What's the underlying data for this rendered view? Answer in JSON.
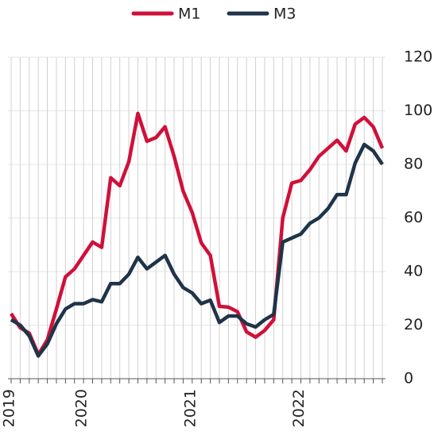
{
  "chart_data": {
    "type": "line",
    "categories": [
      "2019",
      null,
      null,
      null,
      null,
      null,
      null,
      null,
      "2020",
      null,
      null,
      null,
      null,
      null,
      null,
      null,
      null,
      null,
      null,
      null,
      "2021",
      null,
      null,
      null,
      null,
      null,
      null,
      null,
      null,
      null,
      null,
      null,
      "2022",
      null,
      null,
      null,
      null,
      null,
      null,
      null,
      null,
      null
    ],
    "series": [
      {
        "name": "M1",
        "color": "#d0103a",
        "values": [
          24.3,
          19,
          17,
          9,
          14.5,
          26,
          38,
          41,
          46,
          51,
          49,
          75,
          72,
          81,
          99,
          88.6,
          90,
          94,
          83,
          70,
          62,
          50.7,
          46,
          27,
          26.7,
          25,
          17.5,
          15.5,
          18,
          22,
          60,
          73,
          74,
          78,
          83,
          86,
          89,
          85,
          95,
          97.5,
          94,
          86
        ]
      },
      {
        "name": "M3",
        "color": "#1f3448",
        "values": [
          22,
          20,
          16,
          8.5,
          13,
          20.5,
          26,
          28,
          28,
          29.5,
          28.7,
          35.5,
          35.5,
          39,
          45.3,
          41,
          43.5,
          46,
          39,
          34,
          32,
          28,
          29.3,
          21,
          23.4,
          23.4,
          20.5,
          19.3,
          22,
          24,
          51,
          52.5,
          54,
          58,
          60,
          63.5,
          68.7,
          68.7,
          80.5,
          87.4,
          85,
          80
        ]
      }
    ],
    "ylim": [
      0,
      120
    ],
    "yticks": [
      0,
      20,
      40,
      60,
      80,
      100,
      120
    ],
    "grid": true,
    "legend": "top"
  }
}
